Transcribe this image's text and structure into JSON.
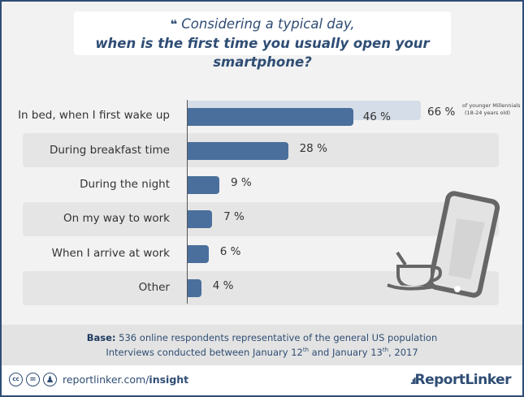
{
  "title": {
    "quote_icon": "quote-icon",
    "line1": "Considering a typical day,",
    "line2": "when is the first time you usually open your smartphone?"
  },
  "chart_data": {
    "type": "bar",
    "orientation": "horizontal",
    "categories": [
      "In bed, when I first wake up",
      "During breakfast time",
      "During the night",
      "On my way to work",
      "When I arrive at work",
      "Other"
    ],
    "values": [
      46,
      28,
      9,
      7,
      6,
      4
    ],
    "value_labels": [
      "46 %",
      "28 %",
      "9 %",
      "7 %",
      "6 %",
      "4 %"
    ],
    "unit": "%",
    "highlight": {
      "category": "In bed, when I first wake up",
      "value": 66,
      "label": "66 %",
      "note_line1": "of younger Millennials",
      "note_line2": "(18-24 years old)"
    },
    "colors": {
      "bar": "#4a6f9c",
      "highlight_bar": "#d5dde8"
    }
  },
  "footer": {
    "base_label": "Base:",
    "base_text": " 536 online respondents representative of the general US population",
    "interviews_pre": "Interviews conducted between January 12",
    "sup1": "th",
    "interviews_mid": " and January 13",
    "sup2": "th",
    "interviews_post": ", 2017"
  },
  "bottom": {
    "cc1": "cc",
    "cc2": "=",
    "url_plain": "reportlinker.com/",
    "url_bold": "insight",
    "logo": "ReportLinker"
  }
}
